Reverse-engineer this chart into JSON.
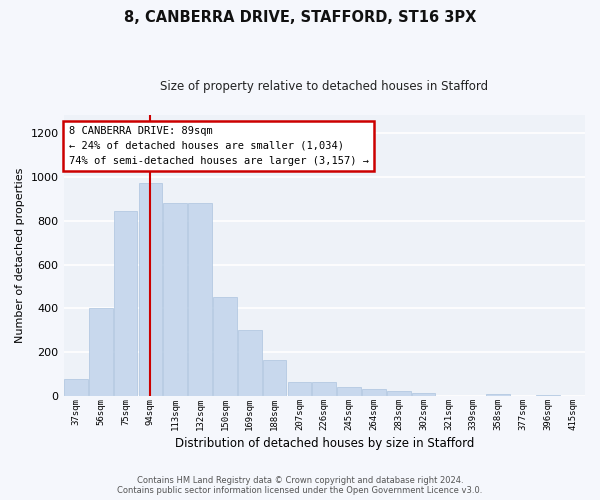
{
  "title_line1": "8, CANBERRA DRIVE, STAFFORD, ST16 3PX",
  "title_line2": "Size of property relative to detached houses in Stafford",
  "xlabel": "Distribution of detached houses by size in Stafford",
  "ylabel": "Number of detached properties",
  "categories": [
    "37sqm",
    "56sqm",
    "75sqm",
    "94sqm",
    "113sqm",
    "132sqm",
    "150sqm",
    "169sqm",
    "188sqm",
    "207sqm",
    "226sqm",
    "245sqm",
    "264sqm",
    "283sqm",
    "302sqm",
    "321sqm",
    "339sqm",
    "358sqm",
    "377sqm",
    "396sqm",
    "415sqm"
  ],
  "values": [
    80,
    400,
    845,
    970,
    880,
    880,
    450,
    300,
    165,
    65,
    65,
    45,
    35,
    25,
    15,
    3,
    0,
    10,
    0,
    5,
    0
  ],
  "bar_color": "#c8d8ed",
  "bar_edge_color": "#adc4df",
  "vline_x": 3.0,
  "vline_color": "#cc0000",
  "annotation_text": "8 CANBERRA DRIVE: 89sqm\n← 24% of detached houses are smaller (1,034)\n74% of semi-detached houses are larger (3,157) →",
  "annotation_box_color": "#ffffff",
  "annotation_box_edge_color": "#cc0000",
  "ylim": [
    0,
    1280
  ],
  "yticks": [
    0,
    200,
    400,
    600,
    800,
    1000,
    1200
  ],
  "background_color": "#eef2f8",
  "grid_color": "#ffffff",
  "footer_line1": "Contains HM Land Registry data © Crown copyright and database right 2024.",
  "footer_line2": "Contains public sector information licensed under the Open Government Licence v3.0."
}
